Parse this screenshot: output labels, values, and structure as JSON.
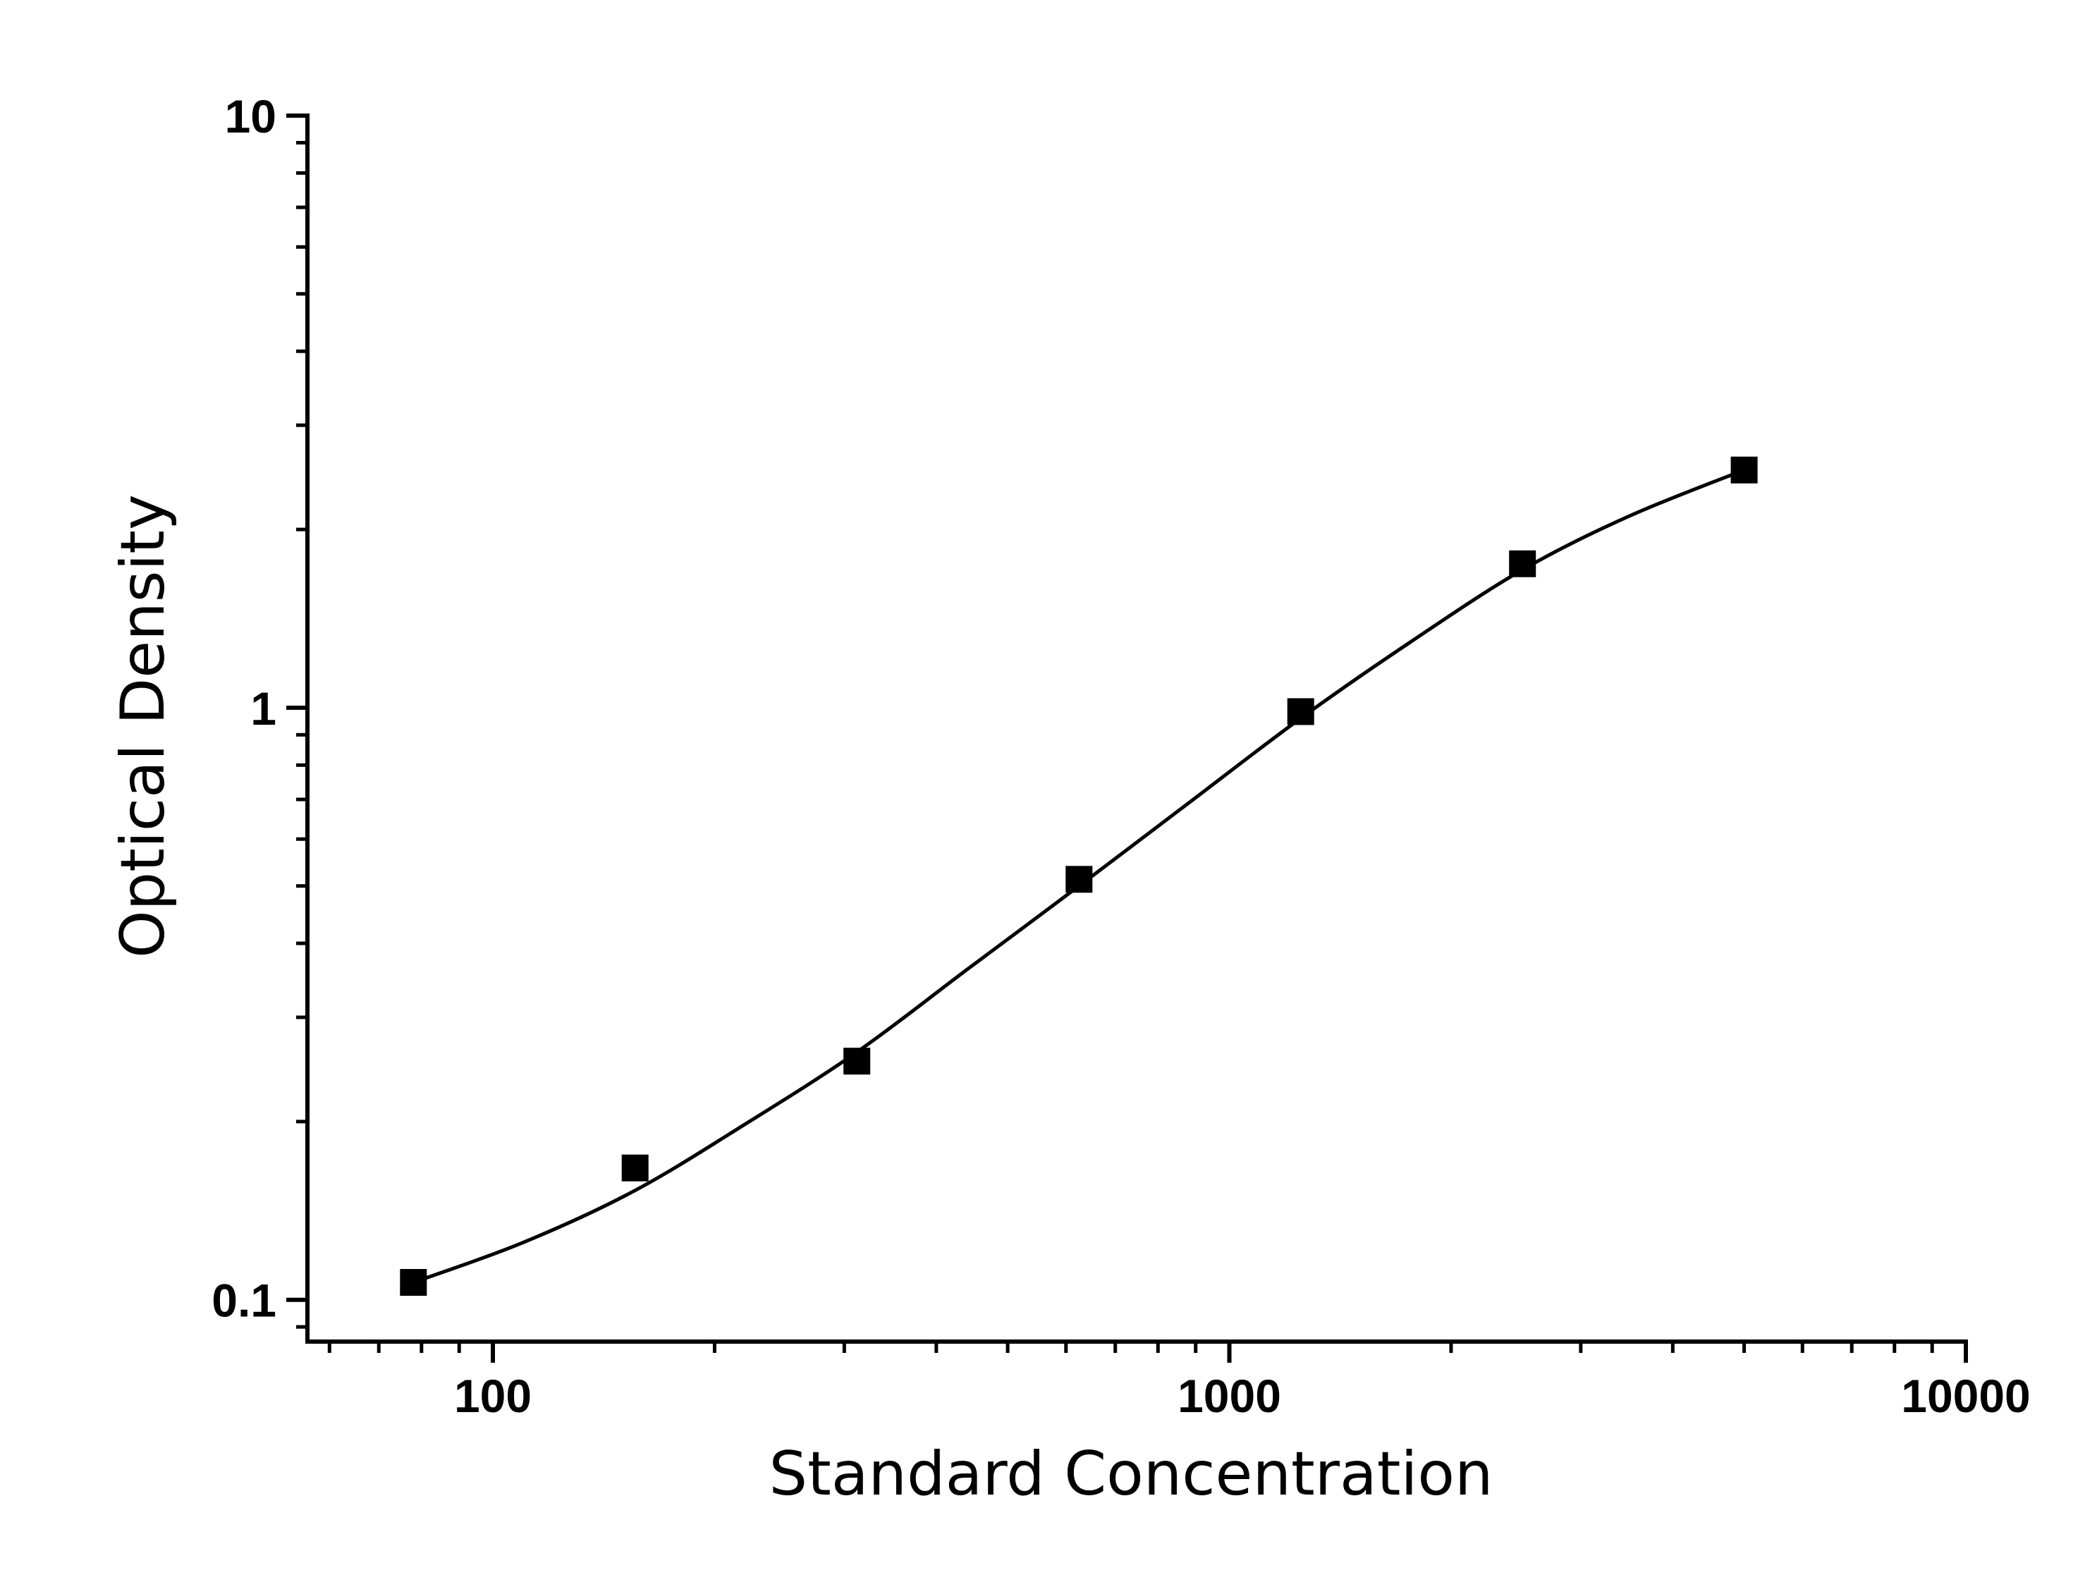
{
  "chart_data": {
    "type": "scatter",
    "title": "",
    "xlabel": "Standard Concentration",
    "ylabel": "Optical Density",
    "x_scale": "log",
    "y_scale": "log",
    "xlim": [
      56,
      10000
    ],
    "ylim": [
      0.085,
      10
    ],
    "x_ticks": [
      {
        "value": 100,
        "label": "100"
      },
      {
        "value": 1000,
        "label": "1000"
      },
      {
        "value": 10000,
        "label": "10000"
      }
    ],
    "y_ticks": [
      {
        "value": 0.1,
        "label": "0.1"
      },
      {
        "value": 1,
        "label": "1"
      },
      {
        "value": 10,
        "label": "10"
      }
    ],
    "grid": false,
    "legend": false,
    "colors": {
      "marker": "#000000",
      "curve": "#000000",
      "axis": "#000000"
    },
    "series": [
      {
        "marker": "square",
        "x": [
          78,
          156,
          312,
          625,
          1250,
          2500,
          5000
        ],
        "y": [
          0.107,
          0.167,
          0.253,
          0.513,
          0.985,
          1.75,
          2.52
        ]
      }
    ],
    "fit_curve": {
      "x": [
        78,
        110,
        156,
        220,
        312,
        440,
        625,
        880,
        1250,
        1760,
        2500,
        3500,
        5000
      ],
      "y": [
        0.107,
        0.125,
        0.153,
        0.198,
        0.262,
        0.361,
        0.5,
        0.69,
        0.96,
        1.29,
        1.71,
        2.11,
        2.52
      ]
    }
  }
}
